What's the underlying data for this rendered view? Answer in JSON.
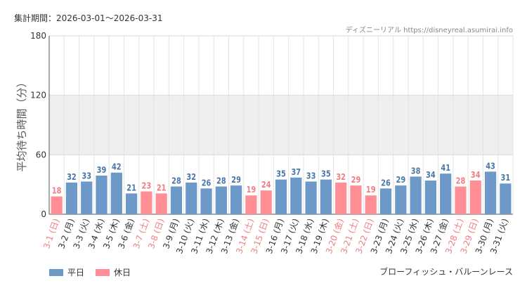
{
  "header": {
    "period": "集計期間：2026-03-01～2026-03-31",
    "source": "ディズニーリアル https://disneyreal.asumirai.info"
  },
  "footer": {
    "attraction": "ブローフィッシュ・バルーンレース"
  },
  "colors": {
    "weekday": "#6c99c8",
    "holiday": "#ff8f94",
    "weekday_text": "#4a77a8",
    "holiday_text": "#f07d84",
    "band": "#efefef",
    "grid": "#e4e4e4"
  },
  "chart_data": {
    "type": "bar",
    "title": "",
    "xlabel": "",
    "ylabel": "平均待ち時間（分）",
    "ylim": [
      0,
      180
    ],
    "yticks": [
      0,
      60,
      120,
      180
    ],
    "shaded_band": [
      60,
      120
    ],
    "legend": [
      {
        "name": "平日",
        "key": "weekday"
      },
      {
        "name": "休日",
        "key": "holiday"
      }
    ],
    "categories": [
      "3-1 (日)",
      "3-2 (月)",
      "3-3 (火)",
      "3-4 (水)",
      "3-5 (木)",
      "3-6 (金)",
      "3-7 (土)",
      "3-8 (日)",
      "3-9 (月)",
      "3-10 (火)",
      "3-11 (水)",
      "3-12 (木)",
      "3-13 (金)",
      "3-14 (土)",
      "3-15 (日)",
      "3-16 (月)",
      "3-17 (火)",
      "3-18 (水)",
      "3-19 (木)",
      "3-20 (金)",
      "3-21 (土)",
      "3-22 (日)",
      "3-23 (月)",
      "3-24 (火)",
      "3-25 (水)",
      "3-26 (木)",
      "3-27 (金)",
      "3-28 (土)",
      "3-29 (日)",
      "3-30 (月)",
      "3-31 (火)"
    ],
    "values": [
      18,
      32,
      33,
      39,
      42,
      21,
      23,
      21,
      28,
      32,
      26,
      28,
      29,
      19,
      24,
      35,
      37,
      33,
      35,
      32,
      29,
      19,
      26,
      29,
      38,
      34,
      41,
      28,
      34,
      43,
      31
    ],
    "holiday": [
      true,
      false,
      false,
      false,
      false,
      false,
      true,
      true,
      false,
      false,
      false,
      false,
      false,
      true,
      true,
      false,
      false,
      false,
      false,
      true,
      true,
      true,
      false,
      false,
      false,
      false,
      false,
      true,
      true,
      false,
      false
    ]
  }
}
